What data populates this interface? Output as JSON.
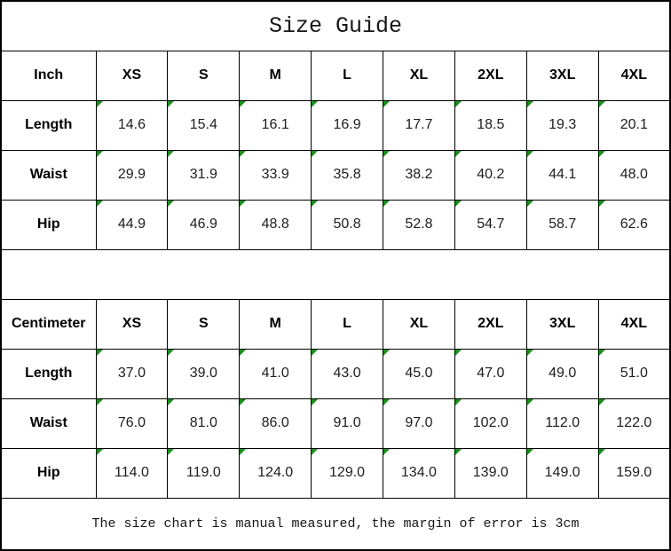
{
  "title": "Size Guide",
  "footer": "The size chart is manual measured, the margin of error is 3cm",
  "colors": {
    "border": "#000000",
    "background": "#ffffff",
    "text": "#1d1d1d",
    "flag_triangle": "#129612"
  },
  "icons": {
    "cell_flag": "green-corner-triangle"
  },
  "tables": [
    {
      "unit_label": "Inch",
      "sizes": [
        "XS",
        "S",
        "M",
        "L",
        "XL",
        "2XL",
        "3XL",
        "4XL"
      ],
      "rows": [
        {
          "label": "Length",
          "values": [
            "14.6",
            "15.4",
            "16.1",
            "16.9",
            "17.7",
            "18.5",
            "19.3",
            "20.1"
          ]
        },
        {
          "label": "Waist",
          "values": [
            "29.9",
            "31.9",
            "33.9",
            "35.8",
            "38.2",
            "40.2",
            "44.1",
            "48.0"
          ]
        },
        {
          "label": "Hip",
          "values": [
            "44.9",
            "46.9",
            "48.8",
            "50.8",
            "52.8",
            "54.7",
            "58.7",
            "62.6"
          ]
        }
      ]
    },
    {
      "unit_label": "Centimeter",
      "sizes": [
        "XS",
        "S",
        "M",
        "L",
        "XL",
        "2XL",
        "3XL",
        "4XL"
      ],
      "rows": [
        {
          "label": "Length",
          "values": [
            "37.0",
            "39.0",
            "41.0",
            "43.0",
            "45.0",
            "47.0",
            "49.0",
            "51.0"
          ]
        },
        {
          "label": "Waist",
          "values": [
            "76.0",
            "81.0",
            "86.0",
            "91.0",
            "97.0",
            "102.0",
            "112.0",
            "122.0"
          ]
        },
        {
          "label": "Hip",
          "values": [
            "114.0",
            "119.0",
            "124.0",
            "129.0",
            "134.0",
            "139.0",
            "149.0",
            "159.0"
          ]
        }
      ]
    }
  ]
}
